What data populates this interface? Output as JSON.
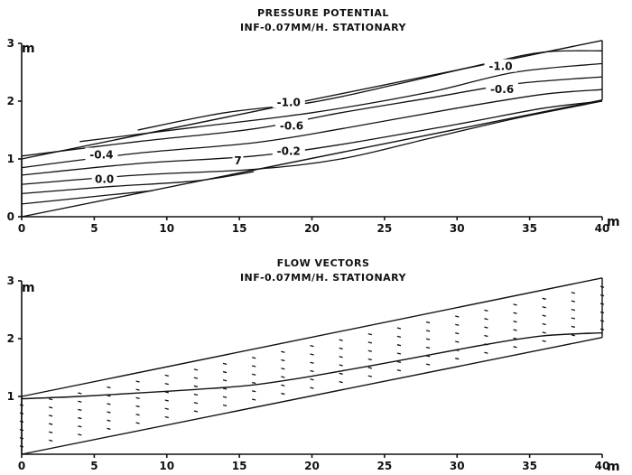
{
  "charts": [
    {
      "id": "pressure",
      "title": "PRESSURE POTENTIAL",
      "subtitle": "INF-0.07MM/H. STATIONARY",
      "type": "line",
      "xunit": "m",
      "yunit": "m",
      "xlim": [
        0,
        40
      ],
      "ylim": [
        0,
        3
      ],
      "xticks": [
        0,
        5,
        10,
        15,
        20,
        25,
        30,
        35,
        40
      ],
      "yticks": [
        0,
        1,
        2,
        3
      ],
      "domain": {
        "top": [
          [
            0,
            1.0
          ],
          [
            40,
            3.05
          ]
        ],
        "bottom": [
          [
            0,
            0.0
          ],
          [
            40,
            2.02
          ]
        ]
      },
      "contours": [
        {
          "label": "-1.0",
          "points": [
            [
              8,
              1.5
            ],
            [
              14,
              1.8
            ],
            [
              20,
              1.98
            ],
            [
              26,
              2.3
            ],
            [
              32,
              2.65
            ],
            [
              36,
              2.85
            ],
            [
              40,
              2.87
            ]
          ]
        },
        {
          "label": "",
          "points": [
            [
              4,
              1.3
            ],
            [
              12,
              1.55
            ],
            [
              20,
              1.8
            ],
            [
              28,
              2.15
            ],
            [
              34,
              2.5
            ],
            [
              40,
              2.65
            ]
          ]
        },
        {
          "label": "-0.6",
          "points": [
            [
              0,
              1.05
            ],
            [
              8,
              1.3
            ],
            [
              16,
              1.52
            ],
            [
              22,
              1.8
            ],
            [
              28,
              2.05
            ],
            [
              34,
              2.3
            ],
            [
              40,
              2.42
            ]
          ]
        },
        {
          "label": "-0.4",
          "points": [
            [
              0,
              0.85
            ],
            [
              8,
              1.1
            ],
            [
              16,
              1.28
            ],
            [
              22,
              1.52
            ],
            [
              30,
              1.88
            ],
            [
              36,
              2.12
            ],
            [
              40,
              2.2
            ]
          ]
        },
        {
          "label": "-0.2",
          "points": [
            [
              0,
              0.72
            ],
            [
              8,
              0.92
            ],
            [
              16,
              1.05
            ],
            [
              22,
              1.25
            ],
            [
              30,
              1.6
            ],
            [
              36,
              1.88
            ],
            [
              40,
              2.0
            ]
          ]
        },
        {
          "label": "0.0",
          "points": [
            [
              0,
              0.56
            ],
            [
              8,
              0.72
            ],
            [
              16,
              0.82
            ],
            [
              22,
              1.0
            ],
            [
              28,
              1.35
            ],
            [
              34,
              1.7
            ],
            [
              40,
              2.0
            ]
          ]
        },
        {
          "label": "",
          "points": [
            [
              0,
              0.4
            ],
            [
              6,
              0.52
            ],
            [
              12,
              0.62
            ],
            [
              16,
              0.78
            ]
          ]
        },
        {
          "label": "",
          "points": [
            [
              0,
              0.22
            ],
            [
              5,
              0.35
            ],
            [
              9,
              0.45
            ]
          ]
        }
      ],
      "contour_labels": [
        {
          "text": "-1.0",
          "x": 18.4,
          "y": 1.98
        },
        {
          "text": "-1.0",
          "x": 33.0,
          "y": 2.6
        },
        {
          "text": "-0.6",
          "x": 18.6,
          "y": 1.57
        },
        {
          "text": "-0.6",
          "x": 33.1,
          "y": 2.2
        },
        {
          "text": "-0.4",
          "x": 5.5,
          "y": 1.07
        },
        {
          "text": "-0.2",
          "x": 18.4,
          "y": 1.13
        },
        {
          "text": "0.0",
          "x": 5.7,
          "y": 0.65
        },
        {
          "text": "7",
          "x": 14.9,
          "y": 0.97
        }
      ]
    },
    {
      "id": "flow",
      "title": "FLOW VECTORS",
      "subtitle": "INF-0.07MM/H. STATIONARY",
      "type": "scatter",
      "xunit": "m",
      "yunit": "m",
      "xlim": [
        0,
        40
      ],
      "ylim": [
        0,
        3
      ],
      "xticks": [
        0,
        5,
        10,
        15,
        20,
        25,
        30,
        35,
        40
      ],
      "yticks": [
        1,
        2,
        3
      ],
      "domain": {
        "top": [
          [
            0,
            1.0
          ],
          [
            40,
            3.05
          ]
        ],
        "bottom": [
          [
            0,
            0.0
          ],
          [
            40,
            2.02
          ]
        ]
      },
      "water_table": [
        [
          0,
          0.96
        ],
        [
          4,
          1.0
        ],
        [
          8,
          1.06
        ],
        [
          12,
          1.12
        ],
        [
          16,
          1.2
        ],
        [
          20,
          1.35
        ],
        [
          26,
          1.62
        ],
        [
          32,
          1.9
        ],
        [
          36,
          2.05
        ],
        [
          40,
          2.1
        ]
      ]
    }
  ]
}
